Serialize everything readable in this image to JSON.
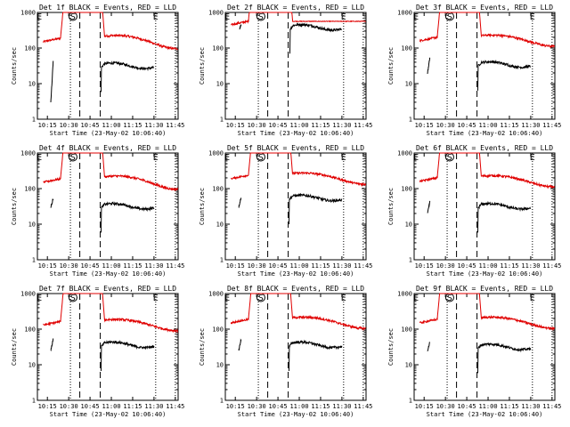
{
  "colors": {
    "events": "#000000",
    "lld": "#e00000",
    "background": "#ffffff"
  },
  "chart_data": {
    "type": "line",
    "grid": false,
    "legend": "none",
    "yscale": "log",
    "ylim": [
      1,
      1000
    ],
    "xlim": [
      10.133,
      11.783
    ],
    "xlabel": "Start Time (23-May-02 10:06:40)",
    "ylabel": "Counts/sec",
    "x_ticks": [
      "10:15",
      "10:30",
      "10:45",
      "11:00",
      "11:15",
      "11:30",
      "11:45"
    ],
    "x_tick_hours": [
      10.25,
      10.5,
      10.75,
      11.0,
      11.25,
      11.5,
      11.75
    ],
    "y_ticks": [
      "1",
      "10",
      "100",
      "1000"
    ],
    "y_tick_values": [
      1,
      10,
      100,
      1000
    ],
    "markers": {
      "start": "S",
      "end": "E"
    },
    "panels": [
      {
        "title": "Det 1f BLACK = Events, RED = LLD",
        "dotted": [
          10.52,
          11.52,
          11.75
        ],
        "dashed": [
          10.63,
          10.87
        ],
        "events": {
          "pre_start": 10.29,
          "pre_end": 10.32,
          "pre_from": 3,
          "pre_to": 50,
          "post_start": 10.88,
          "post_end": 11.5,
          "post_level": 35
        },
        "lld": {
          "base": 150,
          "rise_start": 10.4,
          "fall_end": 10.92,
          "bump": 0.25,
          "flat": false
        }
      },
      {
        "title": "Det 2f BLACK = Events, RED = LLD",
        "dotted": [
          10.52,
          11.52,
          11.75
        ],
        "dashed": [
          10.63,
          10.87
        ],
        "events": {
          "pre_start": 10.3,
          "pre_end": 10.32,
          "pre_from": 350,
          "pre_to": 470,
          "post_start": 10.89,
          "post_end": 11.5,
          "post_level": 420
        },
        "lld": {
          "base": 450,
          "rise_start": 10.4,
          "fall_end": 10.92,
          "bump": 0.05,
          "flat": true
        }
      },
      {
        "title": "Det 3f BLACK = Events, RED = LLD",
        "dotted": [
          10.52,
          11.52,
          11.75
        ],
        "dashed": [
          10.63,
          10.87
        ],
        "events": {
          "pre_start": 10.29,
          "pre_end": 10.32,
          "pre_from": 20,
          "pre_to": 60,
          "post_start": 10.88,
          "post_end": 11.5,
          "post_level": 38
        },
        "lld": {
          "base": 160,
          "rise_start": 10.4,
          "fall_end": 10.92,
          "bump": 0.2,
          "flat": false
        }
      },
      {
        "title": "Det 4f BLACK = Events, RED = LLD",
        "dotted": [
          10.52,
          11.52,
          11.75
        ],
        "dashed": [
          10.63,
          10.87
        ],
        "events": {
          "pre_start": 10.29,
          "pre_end": 10.32,
          "pre_from": 30,
          "pre_to": 55,
          "post_start": 10.88,
          "post_end": 11.5,
          "post_level": 35
        },
        "lld": {
          "base": 150,
          "rise_start": 10.4,
          "fall_end": 10.92,
          "bump": 0.25,
          "flat": false
        }
      },
      {
        "title": "Det 5f BLACK = Events, RED = LLD",
        "dotted": [
          10.52,
          11.52,
          11.75
        ],
        "dashed": [
          10.63,
          10.87
        ],
        "events": {
          "pre_start": 10.29,
          "pre_end": 10.32,
          "pre_from": 30,
          "pre_to": 60,
          "post_start": 10.88,
          "post_end": 11.5,
          "post_level": 60
        },
        "lld": {
          "base": 190,
          "rise_start": 10.4,
          "fall_end": 10.92,
          "bump": 0.2,
          "flat": false
        }
      },
      {
        "title": "Det 6f BLACK = Events, RED = LLD",
        "dotted": [
          10.52,
          11.52,
          11.75
        ],
        "dashed": [
          10.63,
          10.87
        ],
        "events": {
          "pre_start": 10.29,
          "pre_end": 10.32,
          "pre_from": 20,
          "pre_to": 45,
          "post_start": 10.88,
          "post_end": 11.5,
          "post_level": 35
        },
        "lld": {
          "base": 160,
          "rise_start": 10.4,
          "fall_end": 10.92,
          "bump": 0.2,
          "flat": false
        }
      },
      {
        "title": "Det 7f BLACK = Events, RED = LLD",
        "dotted": [
          10.52,
          11.52,
          11.75
        ],
        "dashed": [
          10.63,
          10.87
        ],
        "events": {
          "pre_start": 10.29,
          "pre_end": 10.32,
          "pre_from": 25,
          "pre_to": 55,
          "post_start": 10.88,
          "post_end": 11.5,
          "post_level": 40
        },
        "lld": {
          "base": 130,
          "rise_start": 10.4,
          "fall_end": 10.92,
          "bump": 0.2,
          "flat": false
        }
      },
      {
        "title": "Det 8f BLACK = Events, RED = LLD",
        "dotted": [
          10.52,
          11.52,
          11.75
        ],
        "dashed": [
          10.63,
          10.87
        ],
        "events": {
          "pre_start": 10.29,
          "pre_end": 10.32,
          "pre_from": 25,
          "pre_to": 55,
          "post_start": 10.88,
          "post_end": 11.5,
          "post_level": 40
        },
        "lld": {
          "base": 150,
          "rise_start": 10.4,
          "fall_end": 10.92,
          "bump": 0.2,
          "flat": false
        }
      },
      {
        "title": "Det 9f BLACK = Events, RED = LLD",
        "dotted": [
          10.52,
          11.52,
          11.75
        ],
        "dashed": [
          10.63,
          10.87
        ],
        "events": {
          "pre_start": 10.29,
          "pre_end": 10.32,
          "pre_from": 25,
          "pre_to": 45,
          "post_start": 10.88,
          "post_end": 11.5,
          "post_level": 35
        },
        "lld": {
          "base": 150,
          "rise_start": 10.4,
          "fall_end": 10.92,
          "bump": 0.2,
          "flat": false
        }
      }
    ]
  }
}
